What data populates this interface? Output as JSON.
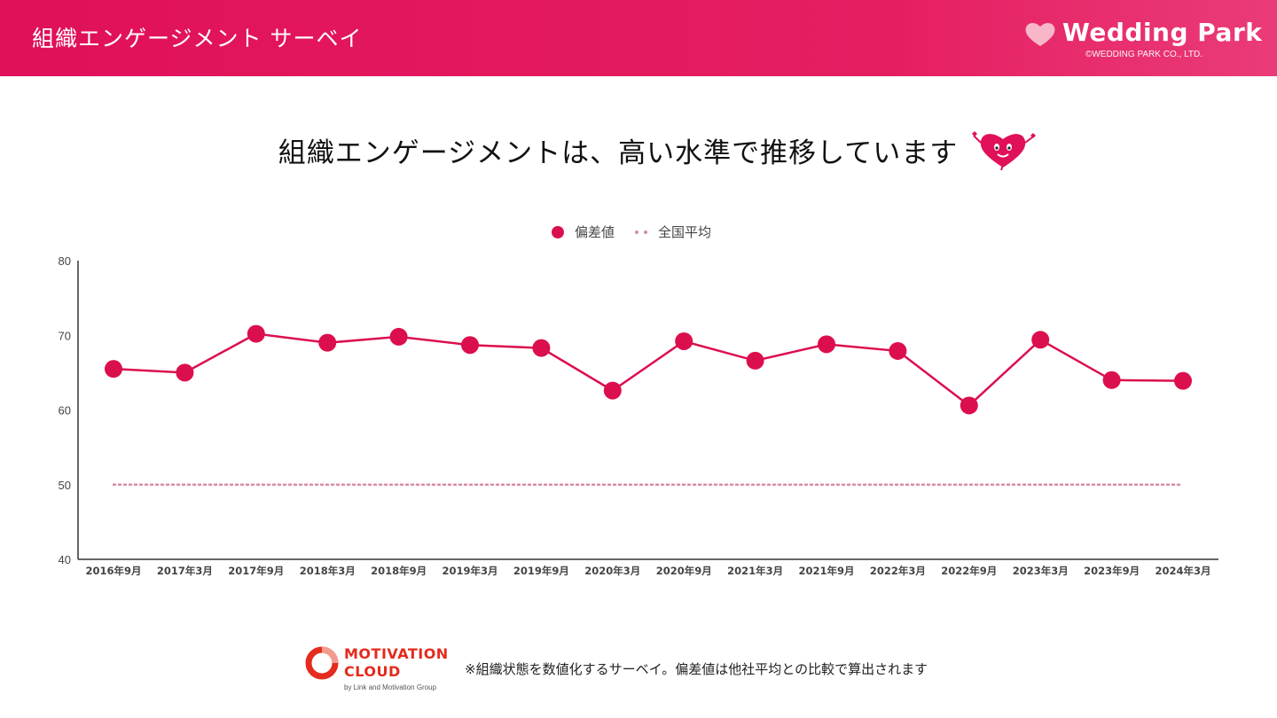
{
  "header": {
    "title": "組織エンゲージメント サーベイ",
    "brand_name": "Wedding Park",
    "brand_copyright": "©WEDDING PARK CO., LTD."
  },
  "slide_title": "組織エンゲージメントは、高い水準で推移しています",
  "footer": {
    "logo_line1": "MOTIVATION",
    "logo_line2": "CLOUD",
    "logo_line3": "by Link and Motivation Group",
    "note": "※組織状態を数値化するサーベイ。偏差値は他社平均との比較で算出されます"
  },
  "colors": {
    "header": "#e0105a",
    "series_main": "#dc0f4e",
    "series_avg": "#d48ca6",
    "axis": "#333333"
  },
  "chart_data": {
    "type": "line",
    "categories": [
      "2016年9月",
      "2017年3月",
      "2017年9月",
      "2018年3月",
      "2018年9月",
      "2019年3月",
      "2019年9月",
      "2020年3月",
      "2020年9月",
      "2021年3月",
      "2021年9月",
      "2022年3月",
      "2022年9月",
      "2023年3月",
      "2023年9月",
      "2024年3月"
    ],
    "series": [
      {
        "name": "偏差値",
        "values": [
          65.5,
          65.0,
          70.2,
          69.0,
          69.8,
          68.7,
          68.3,
          62.6,
          69.2,
          66.6,
          68.8,
          67.9,
          60.6,
          69.4,
          64.0,
          63.9
        ]
      },
      {
        "name": "全国平均",
        "values": [
          50,
          50,
          50,
          50,
          50,
          50,
          50,
          50,
          50,
          50,
          50,
          50,
          50,
          50,
          50,
          50
        ]
      }
    ],
    "ylim": [
      40,
      80
    ],
    "yticks": [
      40,
      50,
      60,
      70,
      80
    ],
    "legend": "top-center",
    "grid": false
  }
}
